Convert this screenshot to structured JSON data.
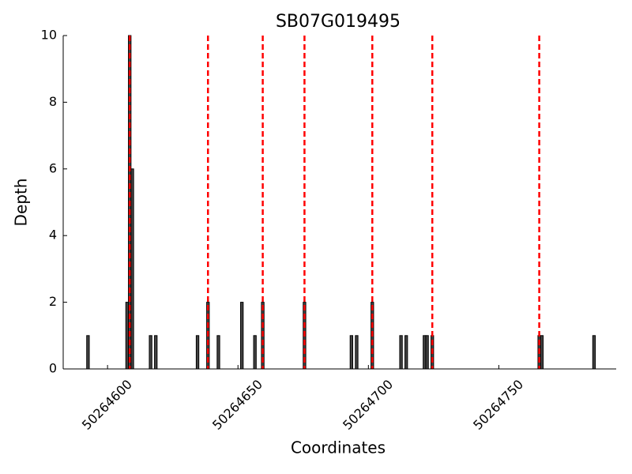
{
  "chart_data": {
    "type": "bar",
    "title": "SB07G019495",
    "x_label": "Coordinates",
    "y_label": "Depth",
    "x": [
      50264592,
      50264607,
      50264608,
      50264609,
      50264616,
      50264618,
      50264634,
      50264638,
      50264642,
      50264651,
      50264656,
      50264659,
      50264675,
      50264693,
      50264695,
      50264701,
      50264712,
      50264714,
      50264721,
      50264722,
      50264724,
      50264765,
      50264766,
      50264786
    ],
    "values": [
      1,
      2,
      10,
      6,
      1,
      1,
      1,
      2,
      1,
      2,
      1,
      2,
      2,
      1,
      1,
      2,
      1,
      1,
      1,
      1,
      1,
      1,
      1,
      1
    ],
    "color": "#444444",
    "markers": [
      50264608,
      50264638,
      50264659,
      50264675,
      50264701,
      50264724,
      50264765
    ],
    "marker_color": "#ff0000",
    "xlim": [
      50264583,
      50264795
    ],
    "xticks": [
      50264600,
      50264650,
      50264700,
      50264750
    ],
    "ylim": [
      0,
      10
    ],
    "yticks": [
      0,
      2,
      4,
      6,
      8,
      10
    ]
  }
}
